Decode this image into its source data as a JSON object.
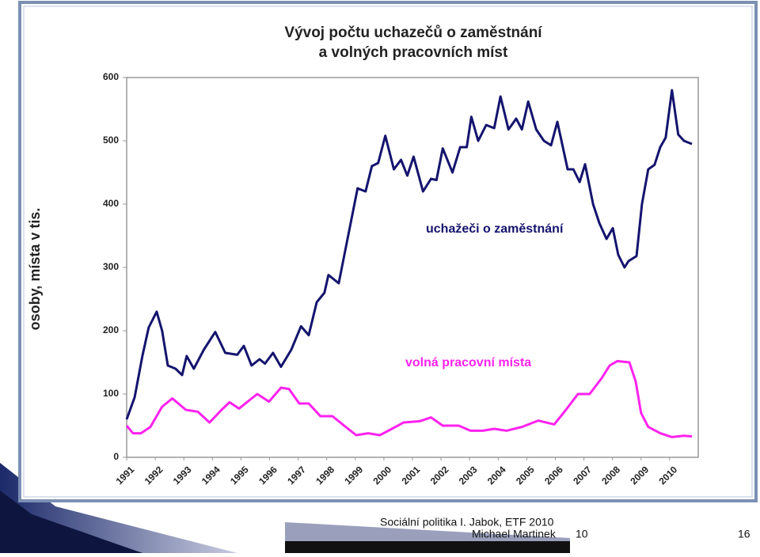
{
  "chart_data": {
    "type": "line",
    "title_lines": [
      "Vývoj počtu uchazečů o zaměstnání",
      "a volných pracovních míst"
    ],
    "y_label": "osoby, místa v tis.",
    "xlim": [
      1991,
      2011
    ],
    "xticks": [
      1991,
      1992,
      1993,
      1994,
      1995,
      1996,
      1997,
      1998,
      1999,
      2000,
      2001,
      2002,
      2003,
      2004,
      2005,
      2006,
      2007,
      2008,
      2009,
      2010
    ],
    "ylim": [
      0,
      600
    ],
    "yticks": [
      0,
      100,
      200,
      300,
      400,
      500,
      600
    ],
    "grid": false,
    "series": [
      {
        "name": "uchažeči o zaměstnání",
        "color": "#14146e",
        "x": [
          1991.0,
          1991.28,
          1991.55,
          1991.77,
          1992.05,
          1992.24,
          1992.44,
          1992.71,
          1992.94,
          1993.1,
          1993.35,
          1993.7,
          1994.1,
          1994.45,
          1994.87,
          1995.1,
          1995.37,
          1995.65,
          1995.84,
          1996.12,
          1996.4,
          1996.76,
          1997.1,
          1997.37,
          1997.65,
          1997.92,
          1998.06,
          1998.42,
          1998.75,
          1999.08,
          1999.36,
          1999.58,
          1999.8,
          2000.05,
          2000.35,
          2000.6,
          2000.82,
          2001.04,
          2001.37,
          2001.65,
          2001.84,
          2002.06,
          2002.4,
          2002.67,
          2002.9,
          2003.06,
          2003.3,
          2003.58,
          2003.86,
          2004.08,
          2004.36,
          2004.63,
          2004.83,
          2005.05,
          2005.33,
          2005.6,
          2005.85,
          2006.07,
          2006.43,
          2006.63,
          2006.85,
          2007.04,
          2007.32,
          2007.54,
          2007.79,
          2008.01,
          2008.2,
          2008.42,
          2008.56,
          2008.84,
          2009.03,
          2009.25,
          2009.47,
          2009.67,
          2009.86,
          2010.08,
          2010.3,
          2010.5,
          2010.78
        ],
        "values": [
          60,
          95,
          160,
          205,
          230,
          200,
          145,
          140,
          130,
          160,
          140,
          170,
          198,
          165,
          162,
          176,
          145,
          155,
          148,
          165,
          143,
          170,
          207,
          193,
          245,
          260,
          288,
          275,
          350,
          425,
          420,
          460,
          465,
          508,
          455,
          470,
          445,
          475,
          420,
          440,
          438,
          488,
          450,
          490,
          490,
          538,
          500,
          525,
          520,
          570,
          518,
          535,
          518,
          562,
          518,
          500,
          493,
          530,
          455,
          455,
          435,
          463,
          400,
          370,
          345,
          362,
          320,
          300,
          310,
          318,
          400,
          455,
          462,
          490,
          505,
          580,
          510,
          500,
          495
        ]
      },
      {
        "name": "volná pracovní místa",
        "color": "#ff22ee",
        "x": [
          1991.0,
          1991.22,
          1991.5,
          1991.83,
          1992.24,
          1992.6,
          1993.07,
          1993.49,
          1993.9,
          1994.32,
          1994.6,
          1994.93,
          1995.29,
          1995.57,
          1995.98,
          1996.4,
          1996.68,
          1997.04,
          1997.37,
          1997.78,
          1998.2,
          1998.61,
          1999.03,
          1999.45,
          1999.86,
          2000.28,
          2000.69,
          2001.25,
          2001.65,
          2002.06,
          2002.62,
          2003.03,
          2003.46,
          2003.86,
          2004.29,
          2004.83,
          2005.4,
          2005.96,
          2006.37,
          2006.79,
          2007.2,
          2007.62,
          2007.9,
          2008.17,
          2008.59,
          2008.81,
          2009.0,
          2009.25,
          2009.67,
          2010.08,
          2010.5,
          2010.78
        ],
        "values": [
          50,
          38,
          38,
          48,
          80,
          93,
          75,
          72,
          55,
          75,
          87,
          77,
          90,
          100,
          88,
          110,
          108,
          85,
          85,
          65,
          65,
          50,
          35,
          38,
          35,
          45,
          55,
          57,
          63,
          50,
          50,
          42,
          42,
          45,
          42,
          48,
          58,
          52,
          75,
          100,
          100,
          125,
          145,
          152,
          150,
          120,
          70,
          48,
          38,
          32,
          34,
          33
        ]
      }
    ]
  },
  "footer": {
    "course": "Sociální politika I. Jabok, ETF 2010",
    "author": "Michael Martinek",
    "lecture": "10",
    "page": "16"
  }
}
